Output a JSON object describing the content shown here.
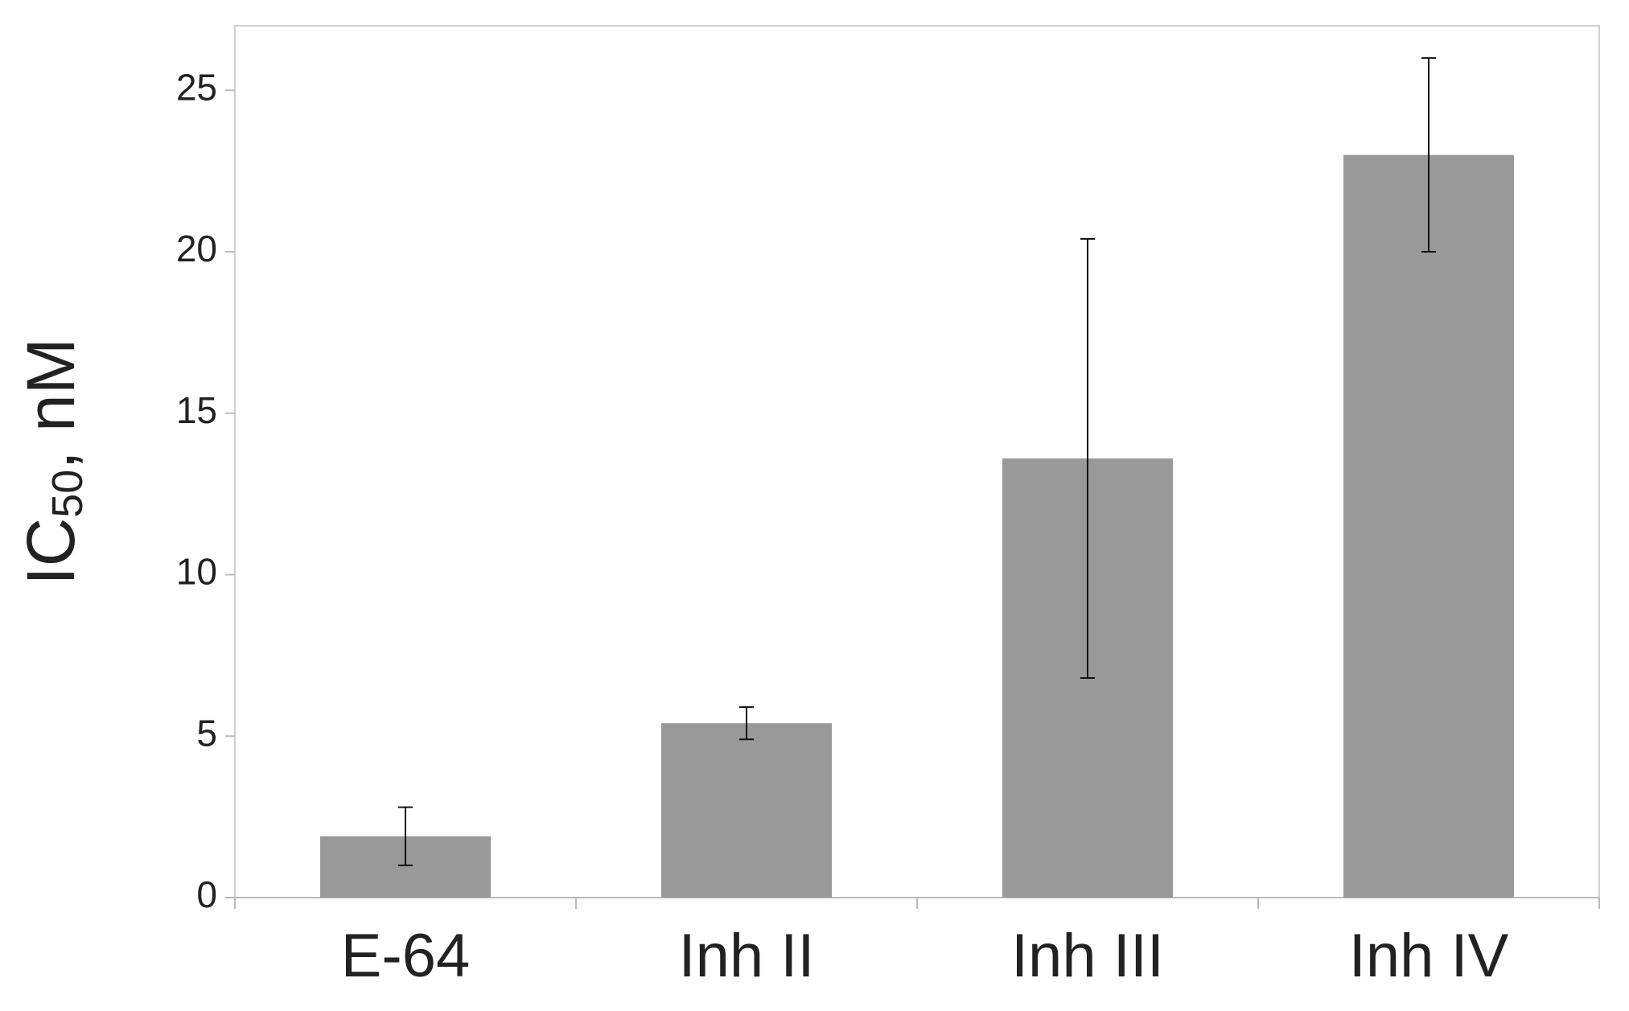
{
  "chart_data": {
    "type": "bar",
    "y_label": "IC",
    "y_label_subscript": "50",
    "y_label_suffix": ", nM",
    "categories": [
      "E-64",
      "Inh II",
      "Inh III",
      "Inh IV"
    ],
    "values": [
      1.9,
      5.4,
      13.6,
      23.0
    ],
    "errors": [
      0.9,
      0.5,
      6.8,
      3.0
    ],
    "color": "#999999",
    "ylim": [
      0,
      27
    ],
    "yticks": [
      0,
      5,
      10,
      15,
      20,
      25
    ],
    "grid": false
  }
}
